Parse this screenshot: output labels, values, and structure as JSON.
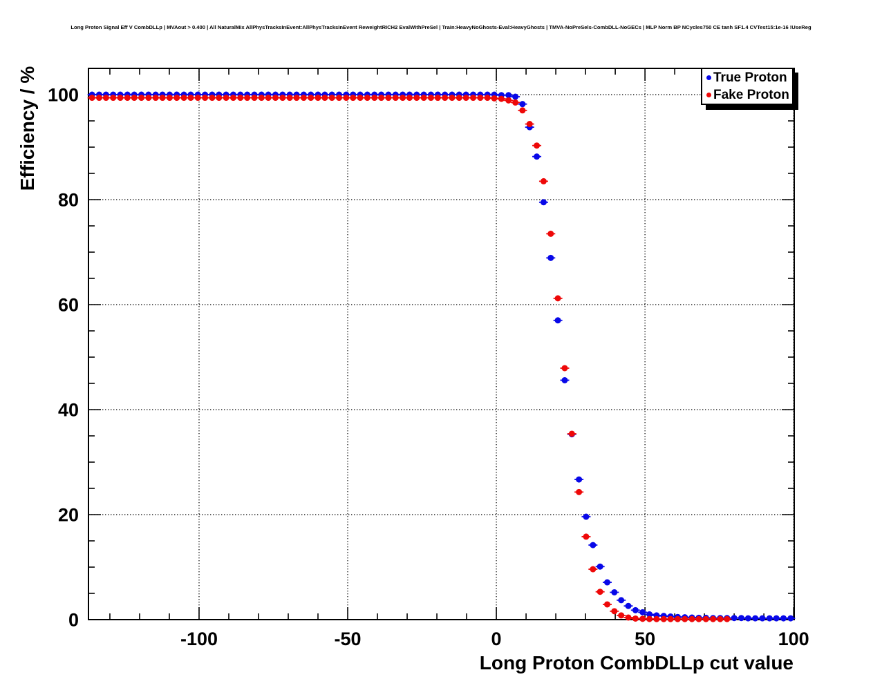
{
  "title": "Long Proton Signal Eff V CombDLLp | MVAout > 0.400 | All NaturalMix AllPhysTracksInEvent:AllPhysTracksInEvent ReweightRICH2 EvalWithPreSel | Train:HeavyNoGhosts-Eval:HeavyGhosts | TMVA-NoPreSels-CombDLL-NoGECs | MLP Norm BP NCycles750 CE tanh SF1.4 CVTest15:1e-16 !UseReg",
  "colors": {
    "true_proton": "#0808e8",
    "fake_proton": "#ee0808",
    "axis": "#000000",
    "grid": "#000000",
    "legend_background": "#ffffff",
    "legend_shadow": "#000000"
  },
  "chart_data": {
    "type": "scatter",
    "title": "Long Proton Signal Eff V CombDLLp | MVAout > 0.400 | All NaturalMix AllPhysTracksInEvent:AllPhysTracksInEvent ReweightRICH2 EvalWithPreSel | Train:HeavyNoGhosts-Eval:HeavyGhosts | TMVA-NoPreSels-CombDLL-NoGECs | MLP Norm BP NCycles750 CE tanh SF1.4 CVTest15:1e-16 !UseReg",
    "xlabel": "Long Proton CombDLLp cut value",
    "ylabel": "Efficiency / %",
    "xlim": [
      -137.2,
      100.2
    ],
    "ylim": [
      0,
      105
    ],
    "x_major_ticks": [
      -100,
      -50,
      0,
      50,
      100
    ],
    "x_minor_step": 10,
    "y_major_ticks": [
      0,
      20,
      40,
      60,
      80,
      100
    ],
    "y_minor_step": 5,
    "grid": "dotted",
    "legend_position": "top-right",
    "marker": "filled-circle",
    "x": [
      -136.0,
      -133.6,
      -131.3,
      -128.9,
      -126.5,
      -124.1,
      -121.8,
      -119.4,
      -117.0,
      -114.6,
      -112.3,
      -109.9,
      -107.5,
      -105.1,
      -102.8,
      -100.4,
      -98.0,
      -95.6,
      -93.3,
      -90.9,
      -88.5,
      -86.1,
      -83.8,
      -81.4,
      -79.0,
      -76.7,
      -74.3,
      -71.9,
      -69.5,
      -67.2,
      -64.8,
      -62.4,
      -60.0,
      -57.7,
      -55.3,
      -52.9,
      -50.5,
      -48.2,
      -45.8,
      -43.4,
      -41.0,
      -38.7,
      -36.3,
      -33.9,
      -31.5,
      -29.2,
      -26.8,
      -24.4,
      -22.0,
      -19.7,
      -17.3,
      -14.9,
      -12.5,
      -10.2,
      -7.8,
      -5.4,
      -3.0,
      -0.7,
      1.7,
      4.1,
      6.4,
      8.8,
      11.2,
      13.6,
      15.9,
      18.3,
      20.7,
      23.0,
      25.4,
      27.8,
      30.2,
      32.5,
      34.9,
      37.3,
      39.7,
      42.0,
      44.4,
      46.8,
      49.2,
      51.5,
      53.9,
      56.3,
      58.6,
      61.0,
      63.4,
      65.8,
      68.1,
      70.5,
      72.9,
      75.3,
      77.6,
      80.0,
      82.4,
      84.7,
      87.1,
      89.5,
      91.9,
      94.2,
      96.6,
      99.0
    ],
    "series": [
      {
        "name": "True Proton",
        "color": "#0808e8",
        "values": [
          100,
          100,
          100,
          100,
          100,
          100,
          100,
          100,
          100,
          100,
          100,
          100,
          100,
          100,
          100,
          100,
          100,
          100,
          100,
          100,
          100,
          100,
          100,
          100,
          100,
          100,
          100,
          100,
          100,
          100,
          100,
          100,
          100,
          100,
          100,
          100,
          100,
          100,
          100,
          100,
          100,
          100,
          100,
          100,
          100,
          100,
          100,
          100,
          100,
          100,
          100,
          100,
          100,
          100,
          100,
          100,
          100,
          100,
          99.9,
          99.9,
          99.6,
          98.2,
          93.8,
          88.2,
          79.5,
          68.9,
          57.0,
          45.6,
          35.3,
          26.7,
          19.6,
          14.2,
          10.1,
          7.1,
          5.2,
          3.7,
          2.6,
          1.8,
          1.4,
          1.0,
          0.8,
          0.7,
          0.6,
          0.5,
          0.45,
          0.4,
          0.35,
          0.35,
          0.3,
          0.3,
          0.3,
          0.3,
          0.3,
          0.25,
          0.25,
          0.25,
          0.25,
          0.25,
          0.25,
          0.25
        ]
      },
      {
        "name": "Fake Proton",
        "color": "#ee0808",
        "values": [
          99.4,
          99.4,
          99.4,
          99.4,
          99.4,
          99.4,
          99.4,
          99.4,
          99.4,
          99.4,
          99.4,
          99.4,
          99.4,
          99.4,
          99.4,
          99.4,
          99.4,
          99.4,
          99.4,
          99.4,
          99.4,
          99.4,
          99.4,
          99.4,
          99.4,
          99.4,
          99.4,
          99.4,
          99.4,
          99.4,
          99.4,
          99.4,
          99.4,
          99.4,
          99.4,
          99.4,
          99.4,
          99.4,
          99.4,
          99.4,
          99.4,
          99.4,
          99.4,
          99.4,
          99.4,
          99.4,
          99.4,
          99.4,
          99.4,
          99.4,
          99.4,
          99.4,
          99.4,
          99.4,
          99.4,
          99.4,
          99.4,
          99.3,
          99.2,
          98.9,
          98.5,
          97.0,
          94.4,
          90.3,
          83.5,
          73.5,
          61.2,
          47.9,
          35.4,
          24.3,
          15.8,
          9.6,
          5.3,
          2.9,
          1.6,
          0.8,
          0.4,
          0.2,
          0.15,
          0.12,
          0.1,
          0.1,
          0.1,
          0.1,
          0.1,
          0.1,
          0.1,
          0.1,
          0.1,
          0.1,
          0.1,
          null,
          null,
          null,
          null,
          null,
          null,
          null,
          null,
          null
        ]
      }
    ]
  },
  "legend": {
    "entries": [
      {
        "label": "True Proton",
        "marker": "blue-dot"
      },
      {
        "label": "Fake Proton",
        "marker": "red-dot"
      }
    ]
  }
}
